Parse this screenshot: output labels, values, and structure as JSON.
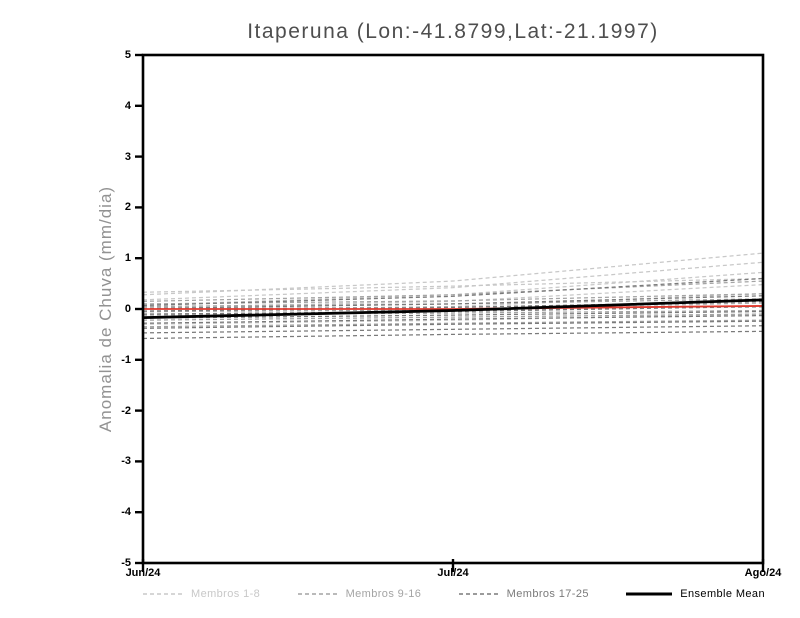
{
  "chart_data": {
    "type": "line",
    "title": "Itaperuna (Lon:-41.8799,Lat:-21.1997)",
    "ylabel": "Anomalia de Chuva (mm/dia)",
    "ylim": [
      -5,
      5
    ],
    "yticks": [
      5,
      4,
      3,
      2,
      1,
      0,
      -1,
      -2,
      -3,
      -4,
      -5
    ],
    "x_ticks": [
      {
        "label": "Jun/24",
        "pos": 0
      },
      {
        "label": "Jul/24",
        "pos": 0.5
      },
      {
        "label": "Ago/24",
        "pos": 1
      }
    ],
    "sample_x": [
      0,
      0.5,
      1
    ],
    "grid": false,
    "legend_position": "bottom",
    "axis_color": "#000000",
    "groups": [
      {
        "id": "membros-1-8",
        "label": "Membros 1-8",
        "color": "#c8c8c8",
        "style": "dashed"
      },
      {
        "id": "membros-9-16",
        "label": "Membros 9-16",
        "color": "#a4a4a4",
        "style": "dashed"
      },
      {
        "id": "membros-17-25",
        "label": "Membros 17-25",
        "color": "#7a7a7a",
        "style": "dashed"
      },
      {
        "id": "ensemble-mean",
        "label": "Ensemble Mean",
        "color": "#000000",
        "style": "solid"
      }
    ],
    "members": [
      {
        "name": "membro-1",
        "group": "membros-1-8",
        "values": [
          0.28,
          0.55,
          1.1
        ]
      },
      {
        "name": "membro-2",
        "group": "membros-1-8",
        "values": [
          0.18,
          0.42,
          0.92
        ]
      },
      {
        "name": "membro-3",
        "group": "membros-1-8",
        "values": [
          0.33,
          0.45,
          0.6
        ]
      },
      {
        "name": "membro-4",
        "group": "membros-1-8",
        "values": [
          0.08,
          0.28,
          0.72
        ]
      },
      {
        "name": "membro-5",
        "group": "membros-1-8",
        "values": [
          0.03,
          0.15,
          0.48
        ]
      },
      {
        "name": "membro-6",
        "group": "membros-1-8",
        "values": [
          -0.06,
          0.05,
          0.3
        ]
      },
      {
        "name": "membro-7",
        "group": "membros-1-8",
        "values": [
          -0.12,
          -0.04,
          0.12
        ]
      },
      {
        "name": "membro-8",
        "group": "membros-1-8",
        "values": [
          -0.3,
          -0.22,
          -0.1
        ]
      },
      {
        "name": "membro-9",
        "group": "membros-9-16",
        "values": [
          0.15,
          0.28,
          0.55
        ]
      },
      {
        "name": "membro-10",
        "group": "membros-9-16",
        "values": [
          0.1,
          0.16,
          0.3
        ]
      },
      {
        "name": "membro-11",
        "group": "membros-9-16",
        "values": [
          0.05,
          0.1,
          0.2
        ]
      },
      {
        "name": "membro-12",
        "group": "membros-9-16",
        "values": [
          0.0,
          0.04,
          0.12
        ]
      },
      {
        "name": "membro-13",
        "group": "membros-9-16",
        "values": [
          -0.05,
          -0.02,
          0.04
        ]
      },
      {
        "name": "membro-14",
        "group": "membros-9-16",
        "values": [
          -0.12,
          -0.08,
          -0.03
        ]
      },
      {
        "name": "membro-15",
        "group": "membros-9-16",
        "values": [
          -0.22,
          -0.16,
          -0.1
        ]
      },
      {
        "name": "membro-16",
        "group": "membros-9-16",
        "values": [
          -0.35,
          -0.28,
          -0.22
        ]
      },
      {
        "name": "membro-17",
        "group": "membros-17-25",
        "values": [
          0.07,
          0.25,
          0.6
        ]
      },
      {
        "name": "membro-18",
        "group": "membros-17-25",
        "values": [
          0.01,
          0.1,
          0.26
        ]
      },
      {
        "name": "membro-19",
        "group": "membros-17-25",
        "values": [
          -0.04,
          0.03,
          0.15
        ]
      },
      {
        "name": "membro-20",
        "group": "membros-17-25",
        "values": [
          -0.1,
          -0.05,
          0.05
        ]
      },
      {
        "name": "membro-21",
        "group": "membros-17-25",
        "values": [
          -0.18,
          -0.12,
          -0.05
        ]
      },
      {
        "name": "membro-22",
        "group": "membros-17-25",
        "values": [
          -0.28,
          -0.2,
          -0.13
        ]
      },
      {
        "name": "membro-23",
        "group": "membros-17-25",
        "values": [
          -0.38,
          -0.3,
          -0.24
        ]
      },
      {
        "name": "membro-24",
        "group": "membros-17-25",
        "values": [
          -0.47,
          -0.4,
          -0.33
        ]
      },
      {
        "name": "membro-25",
        "group": "membros-17-25",
        "values": [
          -0.58,
          -0.5,
          -0.44
        ]
      }
    ],
    "reference_line": {
      "name": "zero-reference",
      "color": "#e03a2e",
      "values": [
        0.0,
        0.0,
        0.06
      ]
    },
    "ensemble_mean": {
      "name": "ensemble-mean",
      "color": "#000000",
      "values": [
        -0.17,
        -0.03,
        0.18
      ]
    }
  }
}
